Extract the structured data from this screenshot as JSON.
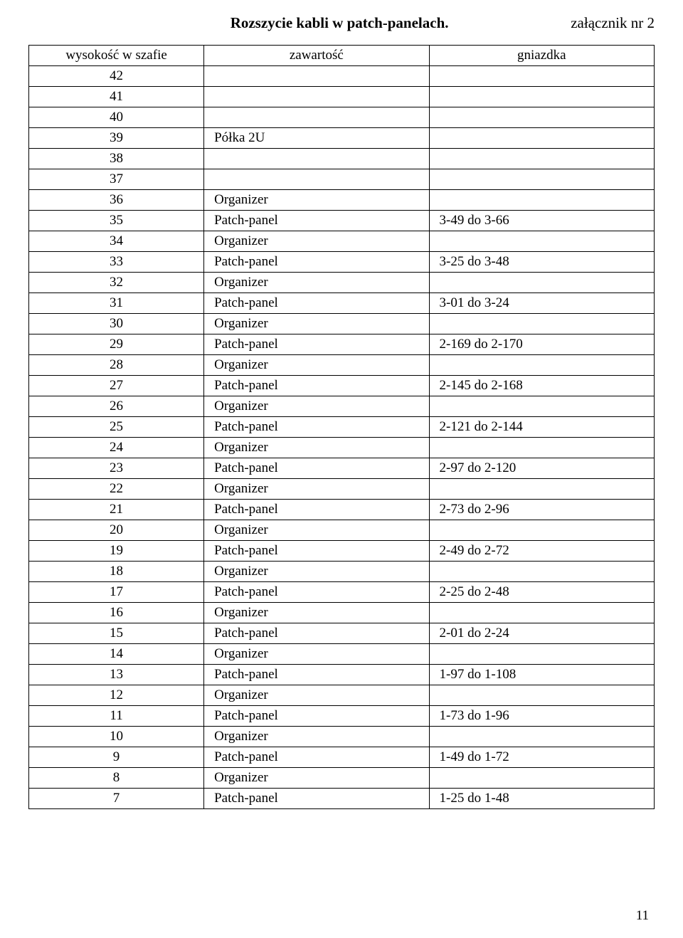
{
  "header": {
    "title": "Rozszycie kabli w patch-panelach.",
    "annex": "załącznik nr 2"
  },
  "table": {
    "columns": [
      "wysokość w szafie",
      "zawartość",
      "gniazdka"
    ],
    "rows": [
      {
        "h": "42",
        "c": "",
        "g": ""
      },
      {
        "h": "41",
        "c": "",
        "g": ""
      },
      {
        "h": "40",
        "c": "",
        "g": ""
      },
      {
        "h": "39",
        "c": "Półka 2U",
        "g": ""
      },
      {
        "h": "38",
        "c": "",
        "g": ""
      },
      {
        "h": "37",
        "c": "",
        "g": ""
      },
      {
        "h": "36",
        "c": "Organizer",
        "g": ""
      },
      {
        "h": "35",
        "c": "Patch-panel",
        "g": "3-49 do 3-66"
      },
      {
        "h": "34",
        "c": "Organizer",
        "g": ""
      },
      {
        "h": "33",
        "c": "Patch-panel",
        "g": "3-25 do 3-48"
      },
      {
        "h": "32",
        "c": "Organizer",
        "g": ""
      },
      {
        "h": "31",
        "c": "Patch-panel",
        "g": "3-01 do 3-24"
      },
      {
        "h": "30",
        "c": "Organizer",
        "g": ""
      },
      {
        "h": "29",
        "c": "Patch-panel",
        "g": "2-169 do 2-170"
      },
      {
        "h": "28",
        "c": "Organizer",
        "g": ""
      },
      {
        "h": "27",
        "c": "Patch-panel",
        "g": "2-145 do 2-168"
      },
      {
        "h": "26",
        "c": "Organizer",
        "g": ""
      },
      {
        "h": "25",
        "c": "Patch-panel",
        "g": "2-121 do 2-144"
      },
      {
        "h": "24",
        "c": "Organizer",
        "g": ""
      },
      {
        "h": "23",
        "c": "Patch-panel",
        "g": "2-97 do 2-120"
      },
      {
        "h": "22",
        "c": "Organizer",
        "g": ""
      },
      {
        "h": "21",
        "c": "Patch-panel",
        "g": "2-73 do 2-96"
      },
      {
        "h": "20",
        "c": "Organizer",
        "g": ""
      },
      {
        "h": "19",
        "c": "Patch-panel",
        "g": "2-49 do 2-72"
      },
      {
        "h": "18",
        "c": "Organizer",
        "g": ""
      },
      {
        "h": "17",
        "c": "Patch-panel",
        "g": "2-25 do 2-48"
      },
      {
        "h": "16",
        "c": "Organizer",
        "g": ""
      },
      {
        "h": "15",
        "c": "Patch-panel",
        "g": "2-01 do 2-24"
      },
      {
        "h": "14",
        "c": "Organizer",
        "g": ""
      },
      {
        "h": "13",
        "c": "Patch-panel",
        "g": "1-97 do 1-108"
      },
      {
        "h": "12",
        "c": "Organizer",
        "g": ""
      },
      {
        "h": "11",
        "c": "Patch-panel",
        "g": "1-73 do 1-96"
      },
      {
        "h": "10",
        "c": "Organizer",
        "g": ""
      },
      {
        "h": "9",
        "c": "Patch-panel",
        "g": "1-49 do 1-72"
      },
      {
        "h": "8",
        "c": "Organizer",
        "g": ""
      },
      {
        "h": "7",
        "c": "Patch-panel",
        "g": "1-25 do 1-48"
      }
    ]
  },
  "page_number": "11"
}
